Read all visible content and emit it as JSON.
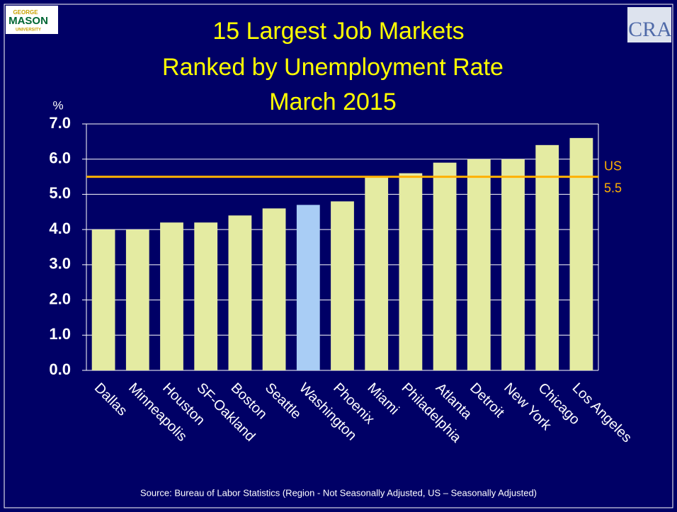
{
  "chart_data": {
    "type": "bar",
    "title_lines": [
      "15 Largest Job Markets",
      "Ranked by Unemployment Rate",
      "March 2015"
    ],
    "y_axis_label": "%",
    "categories": [
      "Dallas",
      "Minneapolis",
      "Houston",
      "SF-Oakland",
      "Boston",
      "Seattle",
      "Washington",
      "Phoenix",
      "Miami",
      "Philadelphia",
      "Atlanta",
      "Detroit",
      "New York",
      "Chicago",
      "Los Angeles"
    ],
    "values": [
      4.0,
      4.0,
      4.2,
      4.2,
      4.4,
      4.6,
      4.7,
      4.8,
      5.5,
      5.6,
      5.9,
      6.0,
      6.0,
      6.4,
      6.6
    ],
    "colors": [
      "#e4eba2",
      "#e4eba2",
      "#e4eba2",
      "#e4eba2",
      "#e4eba2",
      "#e4eba2",
      "#a9cdf5",
      "#e4eba2",
      "#e4eba2",
      "#e4eba2",
      "#e4eba2",
      "#e4eba2",
      "#e4eba2",
      "#e4eba2",
      "#e4eba2"
    ],
    "ylim": [
      0,
      7
    ],
    "yticks": [
      {
        "value": 0,
        "label": "0.0"
      },
      {
        "value": 1,
        "label": "1.0"
      },
      {
        "value": 2,
        "label": "2.0"
      },
      {
        "value": 3,
        "label": "3.0"
      },
      {
        "value": 4,
        "label": "4.0"
      },
      {
        "value": 5,
        "label": "5.0"
      },
      {
        "value": 6,
        "label": "6.0"
      },
      {
        "value": 7,
        "label": "7.0"
      }
    ],
    "grid": true,
    "reference_line": {
      "name": "US",
      "value": 5.5,
      "color": "#ffb000"
    },
    "source": "Source: Bureau of Labor Statistics (Region - Not Seasonally Adjusted, US – Seasonally Adjusted)",
    "logos": {
      "left": [
        "GEORGE",
        "MASON",
        "UNIVERSITY"
      ],
      "right": "CRA"
    }
  }
}
